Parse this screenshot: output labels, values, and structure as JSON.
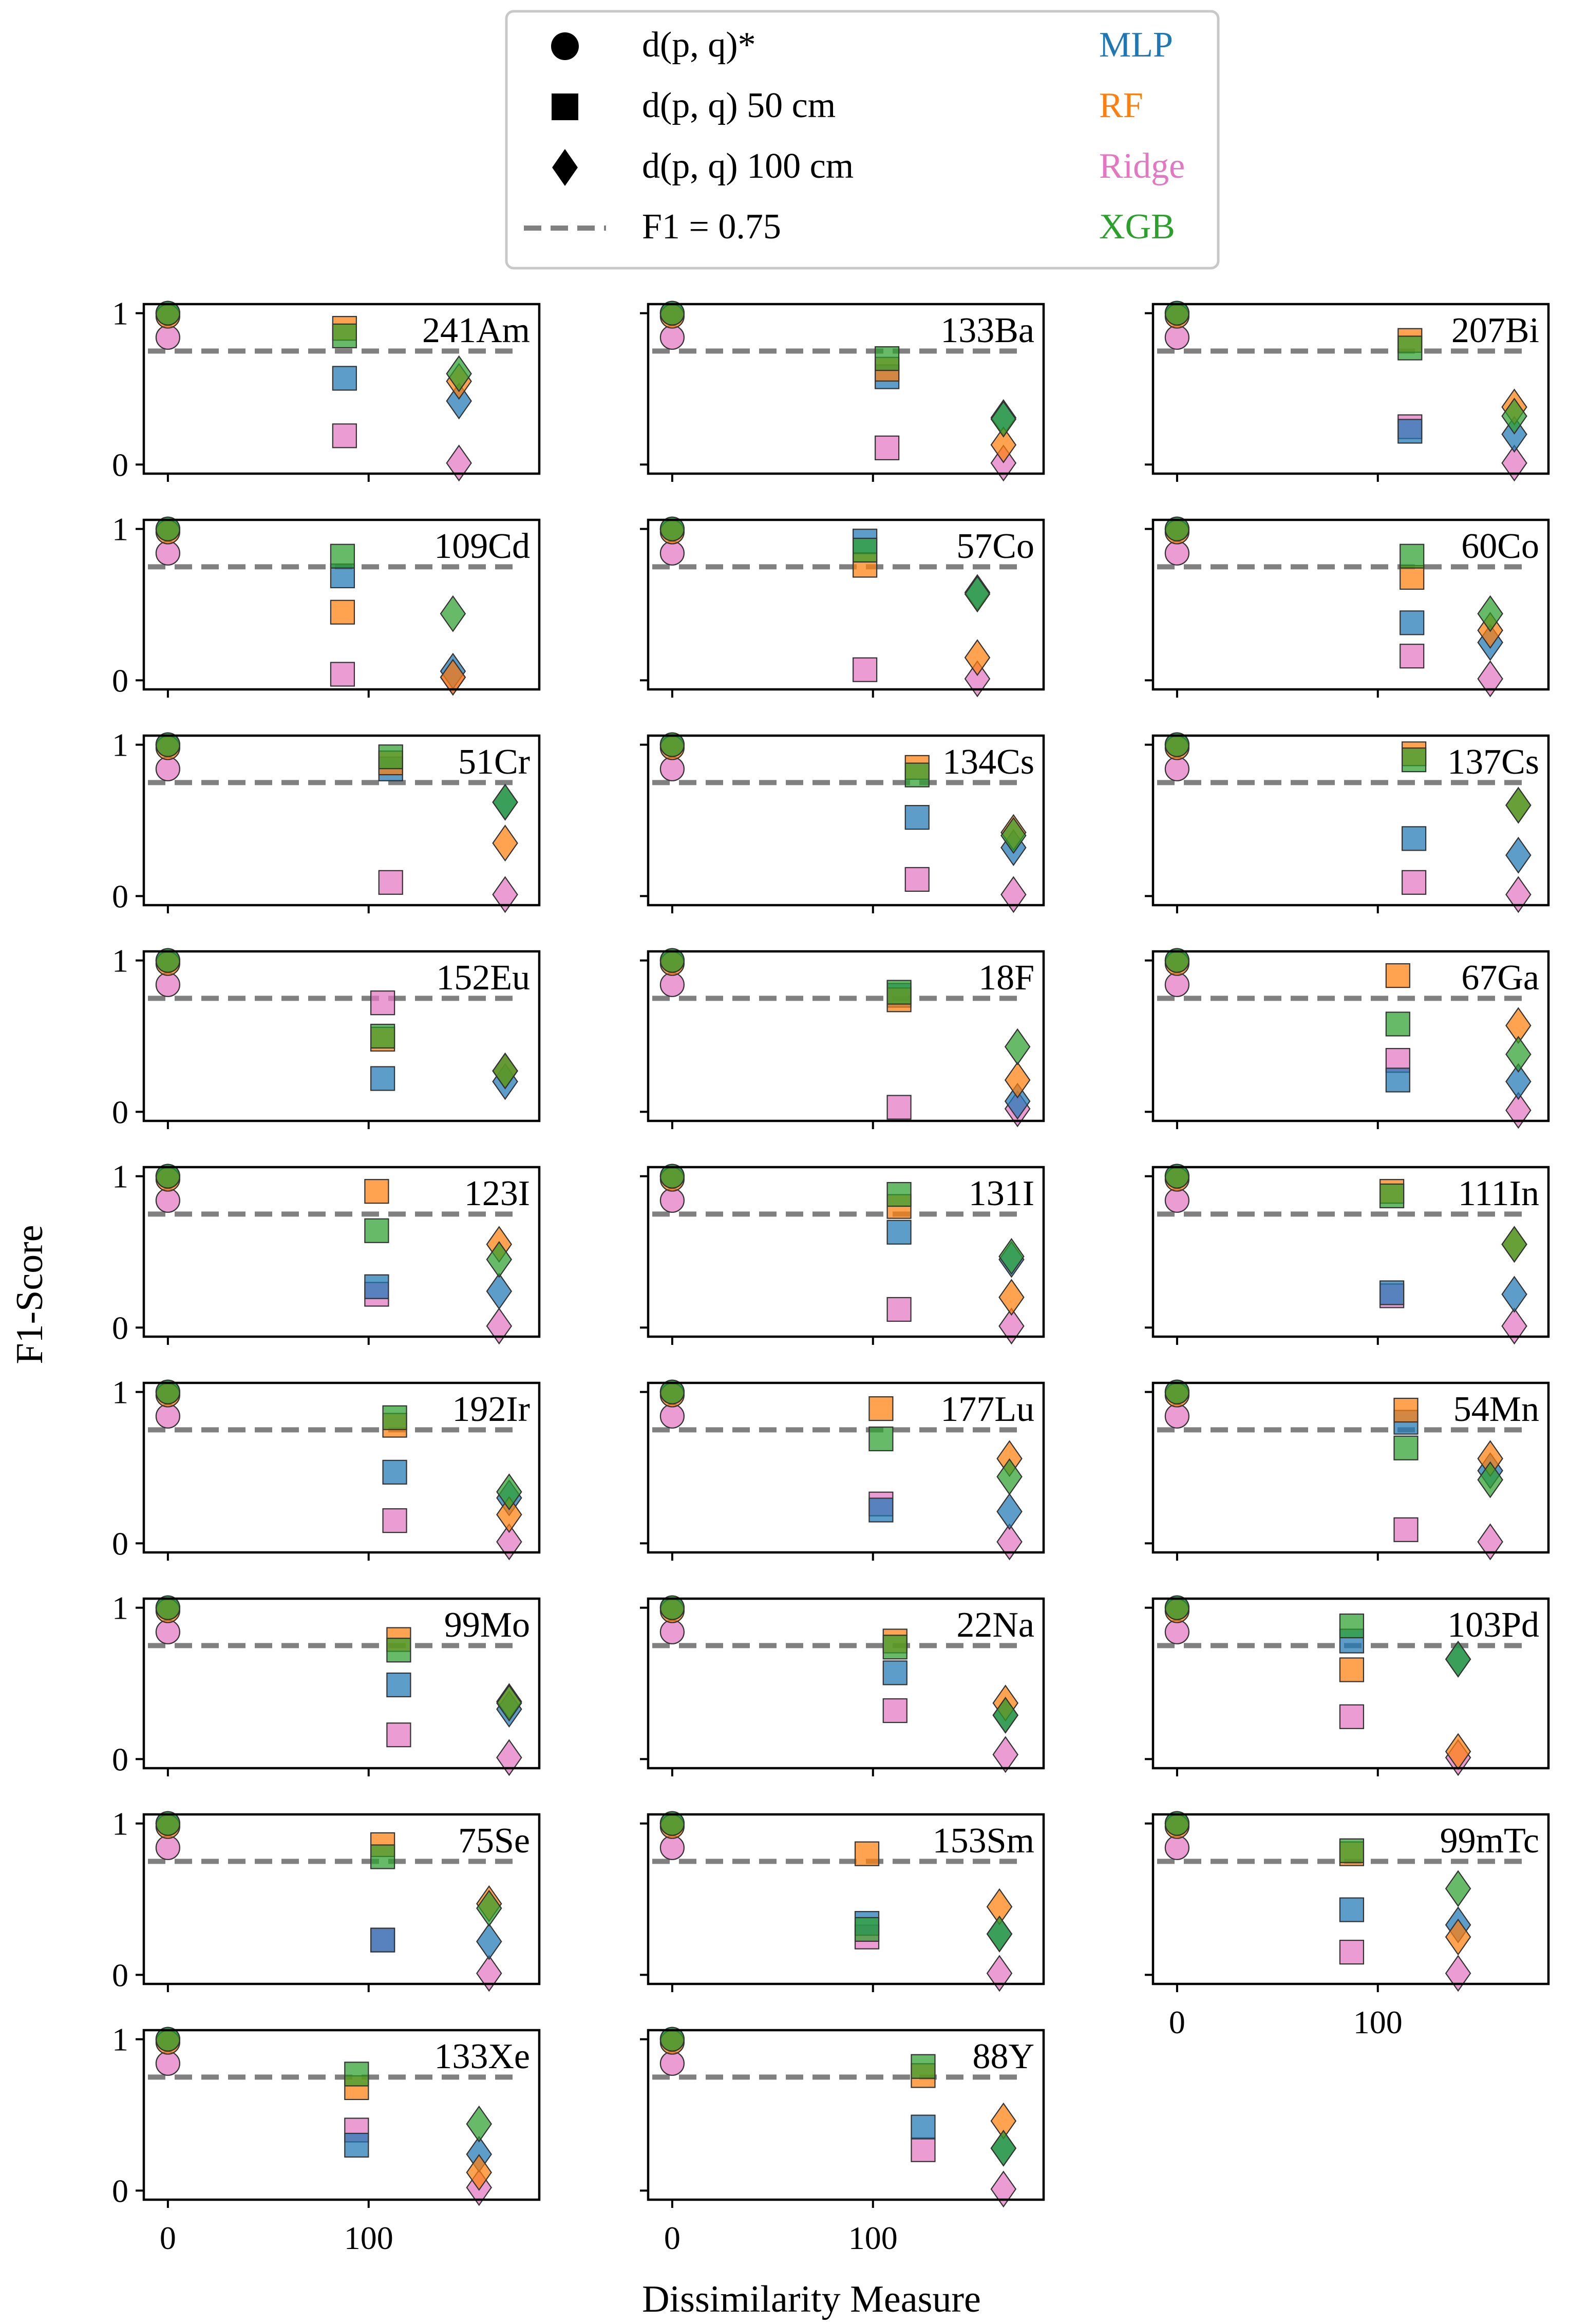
{
  "figure": {
    "xlabel": "Dissimilarity Measure",
    "ylabel": "F1-Score",
    "xticks": [
      0,
      100
    ],
    "yticks": [
      0,
      1
    ]
  },
  "legend": {
    "markers": [
      {
        "label": "d(p, q)*",
        "shape": "circle"
      },
      {
        "label": "d(p, q) 50 cm",
        "shape": "square"
      },
      {
        "label": "d(p, q) 100 cm",
        "shape": "diamond"
      },
      {
        "label": "F1 = 0.75",
        "shape": "dashed-line"
      }
    ],
    "models": [
      {
        "label": "MLP",
        "color": "#1f77b4"
      },
      {
        "label": "RF",
        "color": "#ff7f0e"
      },
      {
        "label": "Ridge",
        "color": "#e377c2"
      },
      {
        "label": "XGB",
        "color": "#2ca02c"
      }
    ]
  },
  "colors": {
    "MLP": "#1f77b4",
    "RF": "#ff7f0e",
    "Ridge": "#e377c2",
    "XGB": "#2ca02c",
    "threshold": "#808080"
  },
  "chart_data": [
    {
      "type": "scatter",
      "title": "241Am",
      "xlim": [
        -12,
        185
      ],
      "ylim": [
        -0.06,
        1.06
      ],
      "threshold": 0.75,
      "series": {
        "star": {
          "x": 0,
          "MLP": 1.0,
          "RF": 0.98,
          "Ridge": 0.84,
          "XGB": 1.0
        },
        "s50": {
          "x": 88,
          "MLP": 0.57,
          "RF": 0.9,
          "Ridge": 0.19,
          "XGB": 0.85
        },
        "s100": {
          "x": 145,
          "MLP": 0.42,
          "RF": 0.55,
          "Ridge": 0.01,
          "XGB": 0.6
        }
      }
    },
    {
      "type": "scatter",
      "title": "133Ba",
      "xlim": [
        -12,
        185
      ],
      "ylim": [
        -0.06,
        1.06
      ],
      "threshold": 0.75,
      "series": {
        "star": {
          "x": 0,
          "MLP": 1.0,
          "RF": 0.98,
          "Ridge": 0.84,
          "XGB": 1.0
        },
        "s50": {
          "x": 107,
          "MLP": 0.58,
          "RF": 0.63,
          "Ridge": 0.11,
          "XGB": 0.7
        },
        "s100": {
          "x": 165,
          "MLP": 0.31,
          "RF": 0.13,
          "Ridge": 0.01,
          "XGB": 0.3
        }
      }
    },
    {
      "type": "scatter",
      "title": "207Bi",
      "xlim": [
        -12,
        185
      ],
      "ylim": [
        -0.06,
        1.06
      ],
      "threshold": 0.75,
      "series": {
        "star": {
          "x": 0,
          "MLP": 1.0,
          "RF": 0.98,
          "Ridge": 0.84,
          "XGB": 1.0
        },
        "s50": {
          "x": 116,
          "MLP": 0.22,
          "RF": 0.82,
          "Ridge": 0.25,
          "XGB": 0.77
        },
        "s100": {
          "x": 168,
          "MLP": 0.2,
          "RF": 0.38,
          "Ridge": 0.01,
          "XGB": 0.32
        }
      }
    },
    {
      "type": "scatter",
      "title": "109Cd",
      "xlim": [
        -12,
        185
      ],
      "ylim": [
        -0.06,
        1.06
      ],
      "threshold": 0.75,
      "series": {
        "star": {
          "x": 0,
          "MLP": 1.0,
          "RF": 0.98,
          "Ridge": 0.84,
          "XGB": 1.0
        },
        "s50": {
          "x": 87,
          "MLP": 0.69,
          "RF": 0.45,
          "Ridge": 0.04,
          "XGB": 0.82
        },
        "s100": {
          "x": 142,
          "MLP": 0.06,
          "RF": 0.02,
          "Ridge": 0.02,
          "XGB": 0.44
        }
      }
    },
    {
      "type": "scatter",
      "title": "57Co",
      "xlim": [
        -12,
        185
      ],
      "ylim": [
        -0.06,
        1.06
      ],
      "threshold": 0.75,
      "series": {
        "star": {
          "x": 0,
          "MLP": 1.0,
          "RF": 0.98,
          "Ridge": 0.84,
          "XGB": 1.0
        },
        "s50": {
          "x": 96,
          "MLP": 0.92,
          "RF": 0.76,
          "Ridge": 0.07,
          "XGB": 0.86
        },
        "s100": {
          "x": 152,
          "MLP": 0.58,
          "RF": 0.15,
          "Ridge": 0.01,
          "XGB": 0.57
        }
      }
    },
    {
      "type": "scatter",
      "title": "60Co",
      "xlim": [
        -12,
        185
      ],
      "ylim": [
        -0.06,
        1.06
      ],
      "threshold": 0.75,
      "series": {
        "star": {
          "x": 0,
          "MLP": 1.0,
          "RF": 0.98,
          "Ridge": 0.84,
          "XGB": 1.0
        },
        "s50": {
          "x": 117,
          "MLP": 0.38,
          "RF": 0.68,
          "Ridge": 0.16,
          "XGB": 0.82
        },
        "s100": {
          "x": 156,
          "MLP": 0.25,
          "RF": 0.33,
          "Ridge": 0.01,
          "XGB": 0.44
        }
      }
    },
    {
      "type": "scatter",
      "title": "51Cr",
      "xlim": [
        -12,
        185
      ],
      "ylim": [
        -0.06,
        1.06
      ],
      "threshold": 0.75,
      "series": {
        "star": {
          "x": 0,
          "MLP": 1.0,
          "RF": 0.98,
          "Ridge": 0.84,
          "XGB": 1.0
        },
        "s50": {
          "x": 111,
          "MLP": 0.84,
          "RF": 0.88,
          "Ridge": 0.09,
          "XGB": 0.92
        },
        "s100": {
          "x": 168,
          "MLP": 0.62,
          "RF": 0.35,
          "Ridge": 0.01,
          "XGB": 0.62
        }
      }
    },
    {
      "type": "scatter",
      "title": "134Cs",
      "xlim": [
        -12,
        185
      ],
      "ylim": [
        -0.06,
        1.06
      ],
      "threshold": 0.75,
      "series": {
        "star": {
          "x": 0,
          "MLP": 1.0,
          "RF": 0.98,
          "Ridge": 0.84,
          "XGB": 1.0
        },
        "s50": {
          "x": 122,
          "MLP": 0.52,
          "RF": 0.85,
          "Ridge": 0.11,
          "XGB": 0.8
        },
        "s100": {
          "x": 170,
          "MLP": 0.32,
          "RF": 0.42,
          "Ridge": 0.01,
          "XGB": 0.4
        }
      }
    },
    {
      "type": "scatter",
      "title": "137Cs",
      "xlim": [
        -12,
        185
      ],
      "ylim": [
        -0.06,
        1.06
      ],
      "threshold": 0.75,
      "series": {
        "star": {
          "x": 0,
          "MLP": 1.0,
          "RF": 0.98,
          "Ridge": 0.84,
          "XGB": 1.0
        },
        "s50": {
          "x": 118,
          "MLP": 0.38,
          "RF": 0.94,
          "Ridge": 0.09,
          "XGB": 0.9
        },
        "s100": {
          "x": 170,
          "MLP": 0.27,
          "RF": 0.6,
          "Ridge": 0.01,
          "XGB": 0.6
        }
      }
    },
    {
      "type": "scatter",
      "title": "152Eu",
      "xlim": [
        -12,
        185
      ],
      "ylim": [
        -0.06,
        1.06
      ],
      "threshold": 0.75,
      "series": {
        "star": {
          "x": 0,
          "MLP": 1.0,
          "RF": 0.98,
          "Ridge": 0.84,
          "XGB": 1.0
        },
        "s50": {
          "x": 107,
          "MLP": 0.22,
          "RF": 0.48,
          "Ridge": 0.72,
          "XGB": 0.5
        },
        "s100": {
          "x": 168,
          "MLP": 0.2,
          "RF": 0.27,
          "Ridge": 0.27,
          "XGB": 0.27
        }
      }
    },
    {
      "type": "scatter",
      "title": "18F",
      "xlim": [
        -12,
        185
      ],
      "ylim": [
        -0.06,
        1.06
      ],
      "threshold": 0.75,
      "series": {
        "star": {
          "x": 0,
          "MLP": 1.0,
          "RF": 0.98,
          "Ridge": 0.84,
          "XGB": 1.0
        },
        "s50": {
          "x": 113,
          "MLP": 0.77,
          "RF": 0.74,
          "Ridge": 0.03,
          "XGB": 0.79
        },
        "s100": {
          "x": 172,
          "MLP": 0.07,
          "RF": 0.21,
          "Ridge": 0.02,
          "XGB": 0.43
        }
      }
    },
    {
      "type": "scatter",
      "title": "67Ga",
      "xlim": [
        -12,
        185
      ],
      "ylim": [
        -0.06,
        1.06
      ],
      "threshold": 0.75,
      "series": {
        "star": {
          "x": 0,
          "MLP": 1.0,
          "RF": 0.98,
          "Ridge": 0.84,
          "XGB": 1.0
        },
        "s50": {
          "x": 110,
          "MLP": 0.21,
          "RF": 0.9,
          "Ridge": 0.34,
          "XGB": 0.58
        },
        "s100": {
          "x": 170,
          "MLP": 0.2,
          "RF": 0.57,
          "Ridge": 0.01,
          "XGB": 0.38
        }
      }
    },
    {
      "type": "scatter",
      "title": "123I",
      "xlim": [
        -12,
        185
      ],
      "ylim": [
        -0.06,
        1.06
      ],
      "threshold": 0.75,
      "series": {
        "star": {
          "x": 0,
          "MLP": 1.0,
          "RF": 0.98,
          "Ridge": 0.84,
          "XGB": 1.0
        },
        "s50": {
          "x": 104,
          "MLP": 0.27,
          "RF": 0.9,
          "Ridge": 0.22,
          "XGB": 0.64
        },
        "s100": {
          "x": 165,
          "MLP": 0.24,
          "RF": 0.55,
          "Ridge": 0.01,
          "XGB": 0.45
        }
      }
    },
    {
      "type": "scatter",
      "title": "131I",
      "xlim": [
        -12,
        185
      ],
      "ylim": [
        -0.06,
        1.06
      ],
      "threshold": 0.75,
      "series": {
        "star": {
          "x": 0,
          "MLP": 1.0,
          "RF": 0.98,
          "Ridge": 0.84,
          "XGB": 1.0
        },
        "s50": {
          "x": 113,
          "MLP": 0.63,
          "RF": 0.8,
          "Ridge": 0.12,
          "XGB": 0.88
        },
        "s100": {
          "x": 169,
          "MLP": 0.45,
          "RF": 0.2,
          "Ridge": 0.01,
          "XGB": 0.47
        }
      }
    },
    {
      "type": "scatter",
      "title": "111In",
      "xlim": [
        -12,
        185
      ],
      "ylim": [
        -0.06,
        1.06
      ],
      "threshold": 0.75,
      "series": {
        "star": {
          "x": 0,
          "MLP": 1.0,
          "RF": 0.98,
          "Ridge": 0.84,
          "XGB": 1.0
        },
        "s50": {
          "x": 107,
          "MLP": 0.23,
          "RF": 0.9,
          "Ridge": 0.21,
          "XGB": 0.87
        },
        "s100": {
          "x": 168,
          "MLP": 0.22,
          "RF": 0.55,
          "Ridge": 0.01,
          "XGB": 0.55
        }
      }
    },
    {
      "type": "scatter",
      "title": "192Ir",
      "xlim": [
        -12,
        185
      ],
      "ylim": [
        -0.06,
        1.06
      ],
      "threshold": 0.75,
      "series": {
        "star": {
          "x": 0,
          "MLP": 1.0,
          "RF": 0.98,
          "Ridge": 0.84,
          "XGB": 1.0
        },
        "s50": {
          "x": 113,
          "MLP": 0.47,
          "RF": 0.78,
          "Ridge": 0.15,
          "XGB": 0.83
        },
        "s100": {
          "x": 170,
          "MLP": 0.3,
          "RF": 0.19,
          "Ridge": 0.01,
          "XGB": 0.34
        }
      }
    },
    {
      "type": "scatter",
      "title": "177Lu",
      "xlim": [
        -12,
        185
      ],
      "ylim": [
        -0.06,
        1.06
      ],
      "threshold": 0.75,
      "series": {
        "star": {
          "x": 0,
          "MLP": 1.0,
          "RF": 0.98,
          "Ridge": 0.84,
          "XGB": 1.0
        },
        "s50": {
          "x": 104,
          "MLP": 0.22,
          "RF": 0.89,
          "Ridge": 0.26,
          "XGB": 0.69
        },
        "s100": {
          "x": 168,
          "MLP": 0.21,
          "RF": 0.56,
          "Ridge": 0.01,
          "XGB": 0.44
        }
      }
    },
    {
      "type": "scatter",
      "title": "54Mn",
      "xlim": [
        -12,
        185
      ],
      "ylim": [
        -0.06,
        1.06
      ],
      "threshold": 0.75,
      "series": {
        "star": {
          "x": 0,
          "MLP": 1.0,
          "RF": 0.98,
          "Ridge": 0.84,
          "XGB": 1.0
        },
        "s50": {
          "x": 114,
          "MLP": 0.8,
          "RF": 0.88,
          "Ridge": 0.09,
          "XGB": 0.63
        },
        "s100": {
          "x": 156,
          "MLP": 0.48,
          "RF": 0.56,
          "Ridge": 0.01,
          "XGB": 0.42
        }
      }
    },
    {
      "type": "scatter",
      "title": "99Mo",
      "xlim": [
        -12,
        185
      ],
      "ylim": [
        -0.06,
        1.06
      ],
      "threshold": 0.75,
      "series": {
        "star": {
          "x": 0,
          "MLP": 1.0,
          "RF": 0.98,
          "Ridge": 0.84,
          "XGB": 1.0
        },
        "s50": {
          "x": 115,
          "MLP": 0.49,
          "RF": 0.79,
          "Ridge": 0.16,
          "XGB": 0.72
        },
        "s100": {
          "x": 170,
          "MLP": 0.33,
          "RF": 0.38,
          "Ridge": 0.01,
          "XGB": 0.37
        }
      }
    },
    {
      "type": "scatter",
      "title": "22Na",
      "xlim": [
        -12,
        185
      ],
      "ylim": [
        -0.06,
        1.06
      ],
      "threshold": 0.75,
      "series": {
        "star": {
          "x": 0,
          "MLP": 1.0,
          "RF": 0.98,
          "Ridge": 0.84,
          "XGB": 1.0
        },
        "s50": {
          "x": 111,
          "MLP": 0.57,
          "RF": 0.78,
          "Ridge": 0.32,
          "XGB": 0.74
        },
        "s100": {
          "x": 166,
          "MLP": 0.29,
          "RF": 0.37,
          "Ridge": 0.03,
          "XGB": 0.29
        }
      }
    },
    {
      "type": "scatter",
      "title": "103Pd",
      "xlim": [
        -12,
        185
      ],
      "ylim": [
        -0.06,
        1.06
      ],
      "threshold": 0.75,
      "series": {
        "star": {
          "x": 0,
          "MLP": 1.0,
          "RF": 0.98,
          "Ridge": 0.84,
          "XGB": 1.0
        },
        "s50": {
          "x": 87,
          "MLP": 0.78,
          "RF": 0.59,
          "Ridge": 0.28,
          "XGB": 0.88
        },
        "s100": {
          "x": 140,
          "MLP": 0.66,
          "RF": 0.05,
          "Ridge": 0.01,
          "XGB": 0.66
        }
      }
    },
    {
      "type": "scatter",
      "title": "75Se",
      "xlim": [
        -12,
        185
      ],
      "ylim": [
        -0.06,
        1.06
      ],
      "threshold": 0.75,
      "series": {
        "star": {
          "x": 0,
          "MLP": 1.0,
          "RF": 0.98,
          "Ridge": 0.84,
          "XGB": 1.0
        },
        "s50": {
          "x": 107,
          "MLP": 0.23,
          "RF": 0.86,
          "Ridge": 0.23,
          "XGB": 0.78
        },
        "s100": {
          "x": 160,
          "MLP": 0.22,
          "RF": 0.47,
          "Ridge": 0.01,
          "XGB": 0.44
        }
      }
    },
    {
      "type": "scatter",
      "title": "153Sm",
      "xlim": [
        -12,
        185
      ],
      "ylim": [
        -0.06,
        1.06
      ],
      "threshold": 0.75,
      "series": {
        "star": {
          "x": 0,
          "MLP": 1.0,
          "RF": 0.98,
          "Ridge": 0.84,
          "XGB": 1.0
        },
        "s50": {
          "x": 97,
          "MLP": 0.34,
          "RF": 0.8,
          "Ridge": 0.25,
          "XGB": 0.3
        },
        "s100": {
          "x": 163,
          "MLP": 0.27,
          "RF": 0.45,
          "Ridge": 0.01,
          "XGB": 0.27
        }
      }
    },
    {
      "type": "scatter",
      "title": "99mTc",
      "xlim": [
        -12,
        185
      ],
      "ylim": [
        -0.06,
        1.06
      ],
      "threshold": 0.75,
      "series": {
        "star": {
          "x": 0,
          "MLP": 1.0,
          "RF": 0.98,
          "Ridge": 0.84,
          "XGB": 1.0
        },
        "s50": {
          "x": 87,
          "MLP": 0.43,
          "RF": 0.8,
          "Ridge": 0.15,
          "XGB": 0.82
        },
        "s100": {
          "x": 140,
          "MLP": 0.33,
          "RF": 0.25,
          "Ridge": 0.01,
          "XGB": 0.57
        }
      }
    },
    {
      "type": "scatter",
      "title": "133Xe",
      "xlim": [
        -12,
        185
      ],
      "ylim": [
        -0.06,
        1.06
      ],
      "threshold": 0.75,
      "series": {
        "star": {
          "x": 0,
          "MLP": 1.0,
          "RF": 0.98,
          "Ridge": 0.84,
          "XGB": 1.0
        },
        "s50": {
          "x": 94,
          "MLP": 0.3,
          "RF": 0.68,
          "Ridge": 0.4,
          "XGB": 0.77
        },
        "s100": {
          "x": 155,
          "MLP": 0.24,
          "RF": 0.12,
          "Ridge": 0.02,
          "XGB": 0.44
        }
      }
    },
    {
      "type": "scatter",
      "title": "88Y",
      "xlim": [
        -12,
        185
      ],
      "ylim": [
        -0.06,
        1.06
      ],
      "threshold": 0.75,
      "series": {
        "star": {
          "x": 0,
          "MLP": 1.0,
          "RF": 0.98,
          "Ridge": 0.84,
          "XGB": 1.0
        },
        "s50": {
          "x": 125,
          "MLP": 0.42,
          "RF": 0.76,
          "Ridge": 0.27,
          "XGB": 0.82
        },
        "s100": {
          "x": 165,
          "MLP": 0.28,
          "RF": 0.46,
          "Ridge": 0.01,
          "XGB": 0.28
        }
      }
    }
  ]
}
